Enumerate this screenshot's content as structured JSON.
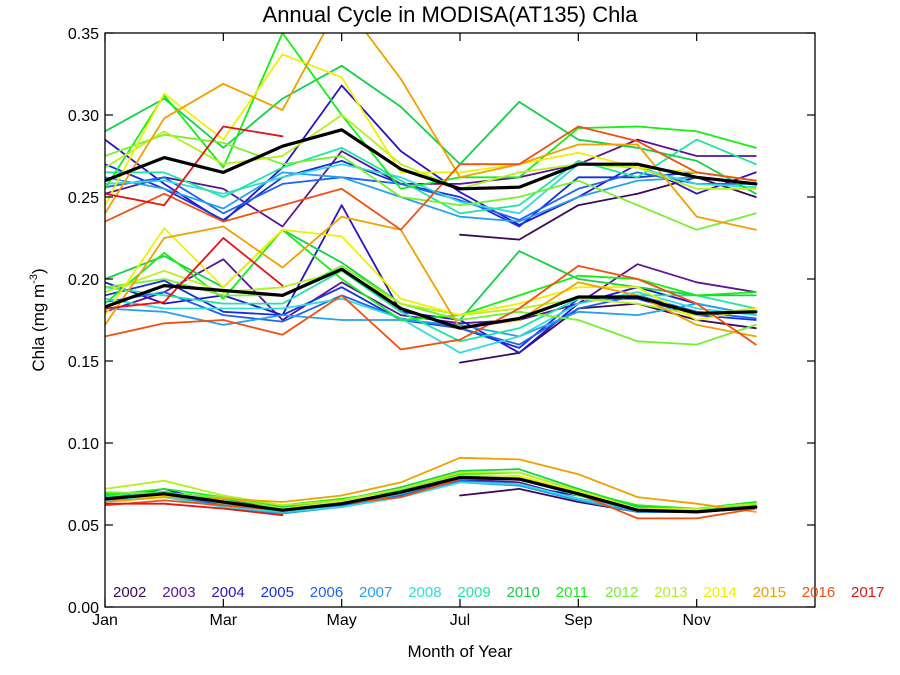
{
  "chart_data": {
    "type": "line",
    "title": "Annual Cycle in MODISA(AT135) Chla",
    "xlabel": "Month of Year",
    "ylabel_main": "Chla (mg m",
    "ylabel_sup": "-3",
    "ylabel_close": ")",
    "xlim": [
      0,
      12
    ],
    "ylim": [
      0,
      0.35
    ],
    "x_ticks": [
      {
        "value": 0,
        "label": "Jan"
      },
      {
        "value": 2,
        "label": "Mar"
      },
      {
        "value": 4,
        "label": "May"
      },
      {
        "value": 6,
        "label": "Jul"
      },
      {
        "value": 8,
        "label": "Sep"
      },
      {
        "value": 10,
        "label": "Nov"
      }
    ],
    "y_ticks": [
      {
        "value": 0.0,
        "label": "0.00"
      },
      {
        "value": 0.05,
        "label": "0.05"
      },
      {
        "value": 0.1,
        "label": "0.10"
      },
      {
        "value": 0.15,
        "label": "0.15"
      },
      {
        "value": 0.2,
        "label": "0.20"
      },
      {
        "value": 0.25,
        "label": "0.25"
      },
      {
        "value": 0.3,
        "label": "0.30"
      },
      {
        "value": 0.35,
        "label": "0.35"
      }
    ],
    "x": [
      0,
      1,
      2,
      3,
      4,
      5,
      6,
      7,
      8,
      9,
      10,
      11
    ],
    "grid": false,
    "legend_position": "bottom-inside",
    "series": [
      {
        "name": "2002",
        "color": "#3c0a5a",
        "high": [
          null,
          null,
          null,
          null,
          null,
          null,
          0.227,
          0.224,
          0.245,
          0.252,
          0.262,
          0.25
        ],
        "mid": [
          null,
          null,
          null,
          null,
          null,
          null,
          0.149,
          0.155,
          0.182,
          0.185,
          0.175,
          0.17
        ],
        "low": [
          null,
          null,
          null,
          null,
          null,
          null,
          0.068,
          0.072,
          0.064,
          0.058,
          0.058,
          0.06
        ]
      },
      {
        "name": "2003",
        "color": "#5a1496",
        "high": [
          0.252,
          0.262,
          0.255,
          0.232,
          0.278,
          0.258,
          0.258,
          0.262,
          0.27,
          0.285,
          0.275,
          0.275
        ],
        "mid": [
          0.18,
          0.192,
          0.212,
          0.175,
          0.198,
          0.178,
          0.173,
          0.175,
          0.185,
          0.209,
          0.198,
          0.192
        ],
        "low": [
          0.065,
          0.07,
          0.066,
          0.06,
          0.063,
          0.07,
          0.078,
          0.076,
          0.066,
          0.06,
          0.058,
          0.061
        ]
      },
      {
        "name": "2004",
        "color": "#2814c8",
        "high": [
          0.285,
          0.258,
          0.235,
          0.268,
          0.318,
          0.278,
          0.253,
          0.233,
          0.25,
          0.27,
          0.252,
          0.265
        ],
        "mid": [
          0.198,
          0.185,
          0.19,
          0.178,
          0.245,
          0.18,
          0.175,
          0.155,
          0.185,
          0.195,
          0.185,
          0.178
        ],
        "low": [
          0.066,
          0.072,
          0.062,
          0.059,
          0.062,
          0.068,
          0.078,
          0.074,
          0.068,
          0.062,
          0.059,
          0.062
        ]
      },
      {
        "name": "2005",
        "color": "#1432dc",
        "high": [
          0.27,
          0.255,
          0.236,
          0.262,
          0.272,
          0.258,
          0.25,
          0.232,
          0.262,
          0.262,
          0.265,
          0.26
        ],
        "mid": [
          0.19,
          0.199,
          0.18,
          0.178,
          0.195,
          0.175,
          0.17,
          0.158,
          0.188,
          0.188,
          0.178,
          0.175
        ],
        "low": [
          0.067,
          0.068,
          0.062,
          0.058,
          0.061,
          0.068,
          0.076,
          0.075,
          0.066,
          0.058,
          0.058,
          0.061
        ]
      },
      {
        "name": "2006",
        "color": "#1e64f0",
        "high": [
          0.256,
          0.262,
          0.24,
          0.258,
          0.262,
          0.258,
          0.248,
          0.236,
          0.255,
          0.265,
          0.258,
          0.258
        ],
        "mid": [
          0.186,
          0.192,
          0.178,
          0.174,
          0.19,
          0.176,
          0.17,
          0.16,
          0.182,
          0.19,
          0.18,
          0.176
        ],
        "low": [
          0.066,
          0.069,
          0.062,
          0.058,
          0.062,
          0.068,
          0.077,
          0.075,
          0.066,
          0.059,
          0.058,
          0.061
        ]
      },
      {
        "name": "2007",
        "color": "#28a0f0",
        "high": [
          0.262,
          0.255,
          0.243,
          0.265,
          0.262,
          0.25,
          0.238,
          0.235,
          0.25,
          0.26,
          0.262,
          0.258
        ],
        "mid": [
          0.182,
          0.18,
          0.172,
          0.178,
          0.175,
          0.175,
          0.172,
          0.165,
          0.18,
          0.178,
          0.185,
          0.178
        ],
        "low": [
          0.065,
          0.068,
          0.061,
          0.057,
          0.061,
          0.067,
          0.076,
          0.074,
          0.065,
          0.058,
          0.058,
          0.061
        ]
      },
      {
        "name": "2008",
        "color": "#32dcdc",
        "high": [
          0.258,
          0.26,
          0.252,
          0.262,
          0.27,
          0.262,
          0.247,
          0.24,
          0.27,
          0.268,
          0.258,
          0.256
        ],
        "mid": [
          0.188,
          0.182,
          0.182,
          0.182,
          0.188,
          0.176,
          0.155,
          0.165,
          0.185,
          0.192,
          0.182,
          0.178
        ],
        "low": [
          0.066,
          0.067,
          0.061,
          0.058,
          0.061,
          0.067,
          0.076,
          0.075,
          0.066,
          0.059,
          0.059,
          0.062
        ]
      },
      {
        "name": "2009",
        "color": "#1ee6a0",
        "high": [
          0.265,
          0.265,
          0.25,
          0.268,
          0.28,
          0.26,
          0.24,
          0.245,
          0.272,
          0.262,
          0.285,
          0.27
        ],
        "mid": [
          0.195,
          0.19,
          0.185,
          0.185,
          0.205,
          0.18,
          0.162,
          0.17,
          0.188,
          0.19,
          0.19,
          0.182
        ],
        "low": [
          0.067,
          0.07,
          0.063,
          0.058,
          0.063,
          0.069,
          0.079,
          0.078,
          0.068,
          0.06,
          0.06,
          0.064
        ]
      },
      {
        "name": "2010",
        "color": "#14d246",
        "high": [
          0.29,
          0.31,
          0.28,
          0.31,
          0.33,
          0.305,
          0.27,
          0.308,
          0.285,
          0.28,
          0.272,
          0.252
        ],
        "mid": [
          0.2,
          0.214,
          0.195,
          0.23,
          0.21,
          0.185,
          0.175,
          0.217,
          0.2,
          0.195,
          0.19,
          0.19
        ],
        "low": [
          0.069,
          0.07,
          0.066,
          0.061,
          0.065,
          0.073,
          0.083,
          0.084,
          0.072,
          0.061,
          0.059,
          0.063
        ]
      },
      {
        "name": "2011",
        "color": "#14f014",
        "high": [
          0.255,
          0.312,
          0.268,
          0.35,
          0.3,
          0.255,
          0.262,
          0.262,
          0.292,
          0.293,
          0.29,
          0.28
        ],
        "mid": [
          0.185,
          0.216,
          0.188,
          0.23,
          0.2,
          0.175,
          0.178,
          0.19,
          0.202,
          0.2,
          0.19,
          0.192
        ],
        "low": [
          0.068,
          0.072,
          0.067,
          0.062,
          0.066,
          0.071,
          0.081,
          0.082,
          0.071,
          0.062,
          0.06,
          0.064
        ]
      },
      {
        "name": "2012",
        "color": "#78f032",
        "high": [
          0.275,
          0.288,
          0.283,
          0.27,
          0.275,
          0.25,
          0.245,
          0.25,
          0.26,
          0.245,
          0.23,
          0.24
        ],
        "mid": [
          0.195,
          0.2,
          0.19,
          0.19,
          0.208,
          0.185,
          0.175,
          0.18,
          0.175,
          0.162,
          0.16,
          0.172
        ],
        "low": [
          0.07,
          0.069,
          0.067,
          0.06,
          0.065,
          0.072,
          0.08,
          0.08,
          0.068,
          0.059,
          0.058,
          0.062
        ]
      },
      {
        "name": "2013",
        "color": "#b4f01e",
        "high": [
          0.268,
          0.29,
          0.27,
          0.275,
          0.3,
          0.27,
          0.255,
          0.265,
          0.27,
          0.268,
          0.255,
          0.255
        ],
        "mid": [
          0.192,
          0.205,
          0.192,
          0.195,
          0.205,
          0.185,
          0.178,
          0.182,
          0.188,
          0.185,
          0.178,
          0.182
        ],
        "low": [
          0.072,
          0.077,
          0.068,
          0.062,
          0.065,
          0.072,
          0.082,
          0.082,
          0.071,
          0.06,
          0.06,
          0.063
        ]
      },
      {
        "name": "2014",
        "color": "#f0f000",
        "high": [
          0.245,
          0.313,
          0.285,
          0.337,
          0.323,
          0.265,
          0.265,
          0.27,
          0.277,
          0.268,
          0.265,
          0.26
        ],
        "mid": [
          0.178,
          0.231,
          0.195,
          0.23,
          0.226,
          0.188,
          0.178,
          0.185,
          0.195,
          0.195,
          0.175,
          0.182
        ],
        "low": [
          0.066,
          0.068,
          0.064,
          0.06,
          0.064,
          0.07,
          0.08,
          0.08,
          0.07,
          0.06,
          0.059,
          0.06
        ]
      },
      {
        "name": "2015",
        "color": "#f0a000",
        "high": [
          0.24,
          0.298,
          0.319,
          0.303,
          0.37,
          0.322,
          0.262,
          0.27,
          0.282,
          0.282,
          0.238,
          0.23
        ],
        "mid": [
          0.172,
          0.225,
          0.232,
          0.207,
          0.238,
          0.23,
          0.17,
          0.175,
          0.198,
          0.19,
          0.172,
          0.165
        ],
        "low": [
          0.064,
          0.067,
          0.066,
          0.064,
          0.068,
          0.076,
          0.091,
          0.09,
          0.081,
          0.067,
          0.063,
          0.058
        ]
      },
      {
        "name": "2016",
        "color": "#f05014",
        "high": [
          0.235,
          0.252,
          0.235,
          0.245,
          0.255,
          0.23,
          0.27,
          0.27,
          0.293,
          0.284,
          0.265,
          0.26
        ],
        "mid": [
          0.165,
          0.173,
          0.175,
          0.166,
          0.19,
          0.157,
          0.163,
          0.182,
          0.208,
          0.2,
          0.185,
          0.16
        ],
        "low": [
          0.062,
          0.065,
          0.062,
          0.059,
          0.063,
          0.067,
          0.078,
          0.078,
          0.069,
          0.054,
          0.054,
          0.06
        ]
      },
      {
        "name": "2017",
        "color": "#e61414",
        "high": [
          0.252,
          0.245,
          0.293,
          0.287,
          null,
          null,
          null,
          null,
          null,
          null,
          null,
          null
        ],
        "mid": [
          0.182,
          0.186,
          0.225,
          0.196,
          null,
          null,
          null,
          null,
          null,
          null,
          null,
          null
        ],
        "low": [
          0.063,
          0.063,
          0.06,
          0.056,
          null,
          null,
          null,
          null,
          null,
          null,
          null,
          null
        ]
      }
    ],
    "mean": {
      "color": "#000000",
      "high": [
        0.26,
        0.274,
        0.265,
        0.281,
        0.291,
        0.267,
        0.255,
        0.256,
        0.27,
        0.27,
        0.262,
        0.258
      ],
      "mid": [
        0.183,
        0.196,
        0.193,
        0.19,
        0.206,
        0.182,
        0.17,
        0.176,
        0.189,
        0.189,
        0.179,
        0.18
      ],
      "low": [
        0.066,
        0.069,
        0.064,
        0.059,
        0.063,
        0.07,
        0.079,
        0.078,
        0.069,
        0.059,
        0.058,
        0.061
      ]
    }
  }
}
